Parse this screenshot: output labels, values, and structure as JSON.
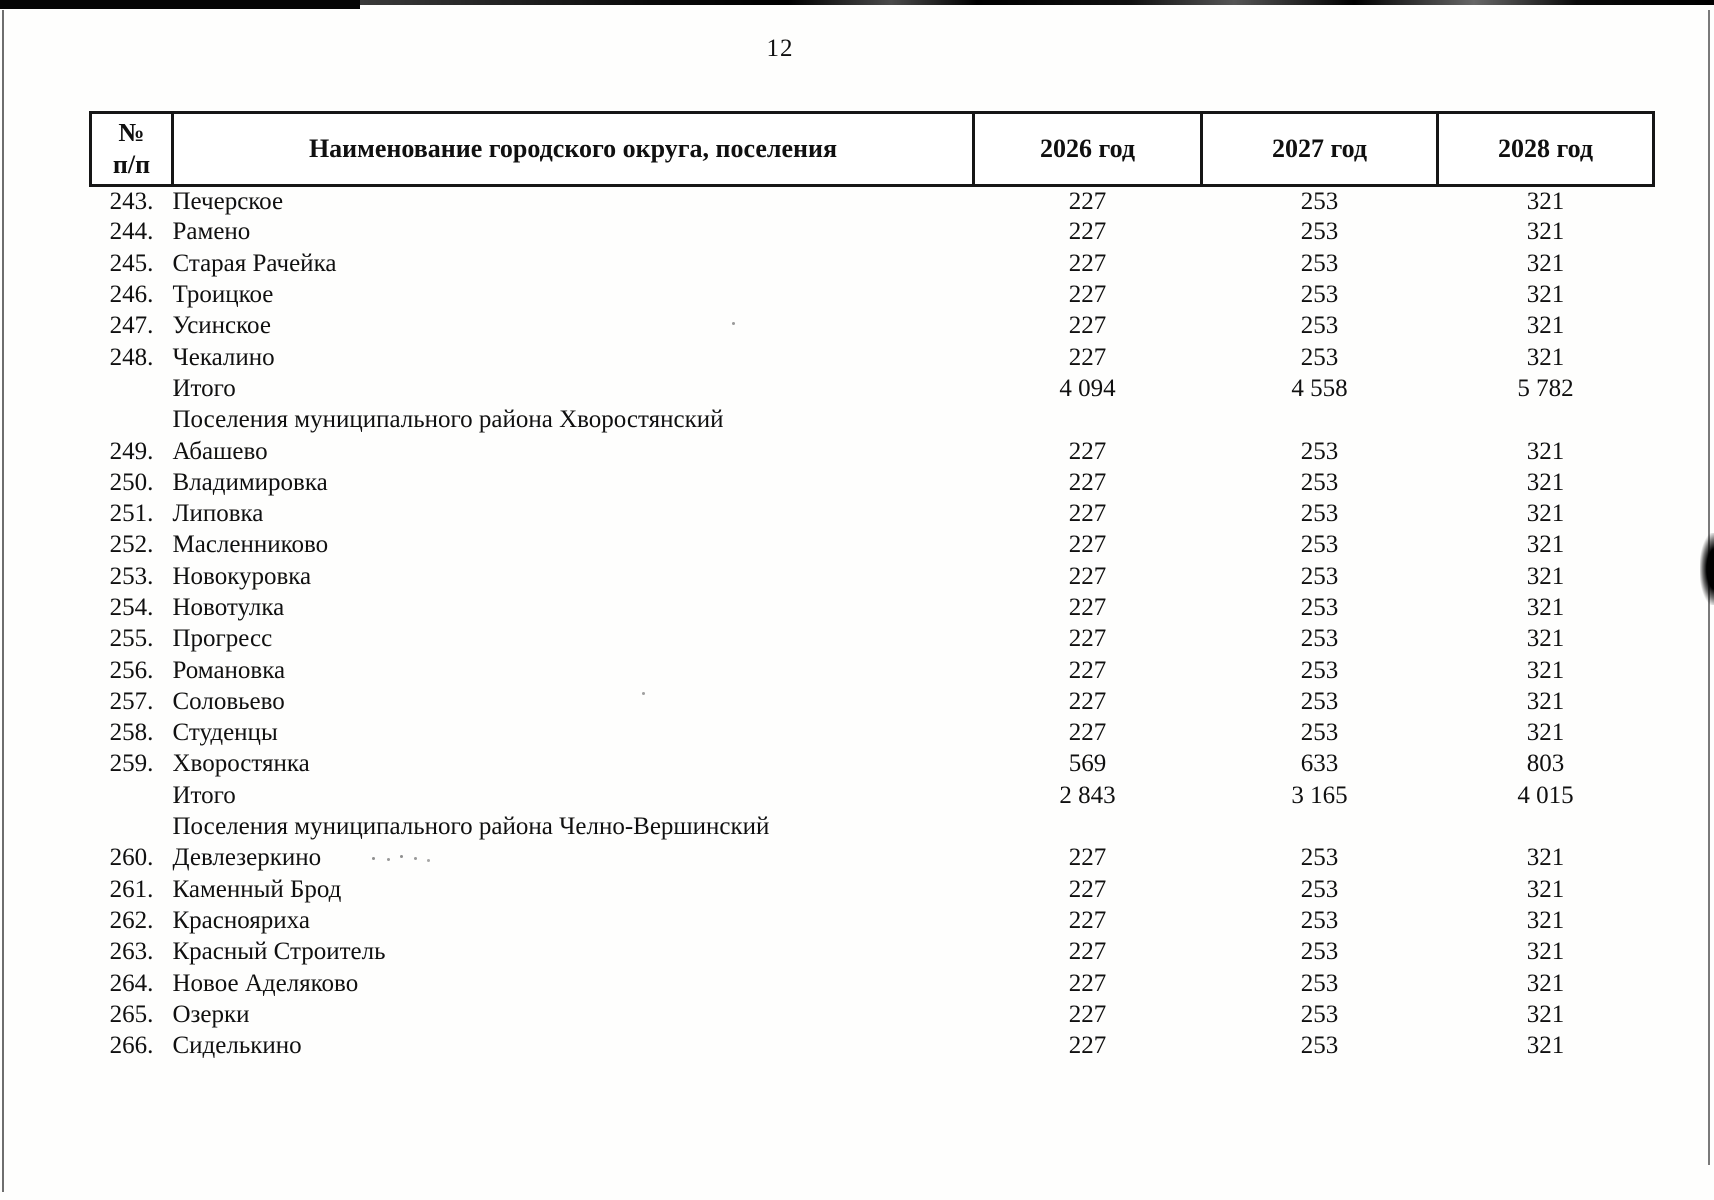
{
  "page": {
    "number": "12"
  },
  "table": {
    "headers": {
      "num_top": "№",
      "num_bottom": "п/п",
      "name": "Наименование городского округа, поселения",
      "year_2026": "2026 год",
      "year_2027": "2027 год",
      "year_2028": "2028 год"
    },
    "rows": [
      {
        "type": "data",
        "num": "243.",
        "name": "Печерское",
        "v2026": "227",
        "v2027": "253",
        "v2028": "321"
      },
      {
        "type": "data",
        "num": "244.",
        "name": "Рамено",
        "v2026": "227",
        "v2027": "253",
        "v2028": "321"
      },
      {
        "type": "data",
        "num": "245.",
        "name": "Старая Рачейка",
        "v2026": "227",
        "v2027": "253",
        "v2028": "321"
      },
      {
        "type": "data",
        "num": "246.",
        "name": "Троицкое",
        "v2026": "227",
        "v2027": "253",
        "v2028": "321"
      },
      {
        "type": "data",
        "num": "247.",
        "name": "Усинское",
        "v2026": "227",
        "v2027": "253",
        "v2028": "321"
      },
      {
        "type": "data",
        "num": "248.",
        "name": "Чекалино",
        "v2026": "227",
        "v2027": "253",
        "v2028": "321"
      },
      {
        "type": "total",
        "num": "",
        "name": "Итого",
        "v2026": "4 094",
        "v2027": "4 558",
        "v2028": "5 782"
      },
      {
        "type": "section",
        "num": "",
        "name": "Поселения муниципального района Хворостянский",
        "v2026": "",
        "v2027": "",
        "v2028": ""
      },
      {
        "type": "data",
        "num": "249.",
        "name": "Абашево",
        "v2026": "227",
        "v2027": "253",
        "v2028": "321"
      },
      {
        "type": "data",
        "num": "250.",
        "name": "Владимировка",
        "v2026": "227",
        "v2027": "253",
        "v2028": "321"
      },
      {
        "type": "data",
        "num": "251.",
        "name": "Липовка",
        "v2026": "227",
        "v2027": "253",
        "v2028": "321"
      },
      {
        "type": "data",
        "num": "252.",
        "name": "Масленниково",
        "v2026": "227",
        "v2027": "253",
        "v2028": "321"
      },
      {
        "type": "data",
        "num": "253.",
        "name": "Новокуровка",
        "v2026": "227",
        "v2027": "253",
        "v2028": "321"
      },
      {
        "type": "data",
        "num": "254.",
        "name": "Новотулка",
        "v2026": "227",
        "v2027": "253",
        "v2028": "321"
      },
      {
        "type": "data",
        "num": "255.",
        "name": "Прогресс",
        "v2026": "227",
        "v2027": "253",
        "v2028": "321"
      },
      {
        "type": "data",
        "num": "256.",
        "name": "Романовка",
        "v2026": "227",
        "v2027": "253",
        "v2028": "321"
      },
      {
        "type": "data",
        "num": "257.",
        "name": "Соловьево",
        "v2026": "227",
        "v2027": "253",
        "v2028": "321"
      },
      {
        "type": "data",
        "num": "258.",
        "name": "Студенцы",
        "v2026": "227",
        "v2027": "253",
        "v2028": "321"
      },
      {
        "type": "data",
        "num": "259.",
        "name": "Хворостянка",
        "v2026": "569",
        "v2027": "633",
        "v2028": "803"
      },
      {
        "type": "total",
        "num": "",
        "name": "Итого",
        "v2026": "2 843",
        "v2027": "3 165",
        "v2028": "4 015"
      },
      {
        "type": "section",
        "num": "",
        "name": "Поселения муниципального района Челно-Вершинский",
        "v2026": "",
        "v2027": "",
        "v2028": ""
      },
      {
        "type": "data",
        "num": "260.",
        "name": "Девлезеркино",
        "v2026": "227",
        "v2027": "253",
        "v2028": "321"
      },
      {
        "type": "data",
        "num": "261.",
        "name": "Каменный Брод",
        "v2026": "227",
        "v2027": "253",
        "v2028": "321"
      },
      {
        "type": "data",
        "num": "262.",
        "name": "Краснояриха",
        "v2026": "227",
        "v2027": "253",
        "v2028": "321"
      },
      {
        "type": "data",
        "num": "263.",
        "name": "Красный Строитель",
        "v2026": "227",
        "v2027": "253",
        "v2028": "321"
      },
      {
        "type": "data",
        "num": "264.",
        "name": "Новое Аделяково",
        "v2026": "227",
        "v2027": "253",
        "v2028": "321"
      },
      {
        "type": "data",
        "num": "265.",
        "name": "Озерки",
        "v2026": "227",
        "v2027": "253",
        "v2028": "321"
      },
      {
        "type": "data",
        "num": "266.",
        "name": "Сиделькино",
        "v2026": "227",
        "v2027": "253",
        "v2028": "321"
      }
    ]
  }
}
